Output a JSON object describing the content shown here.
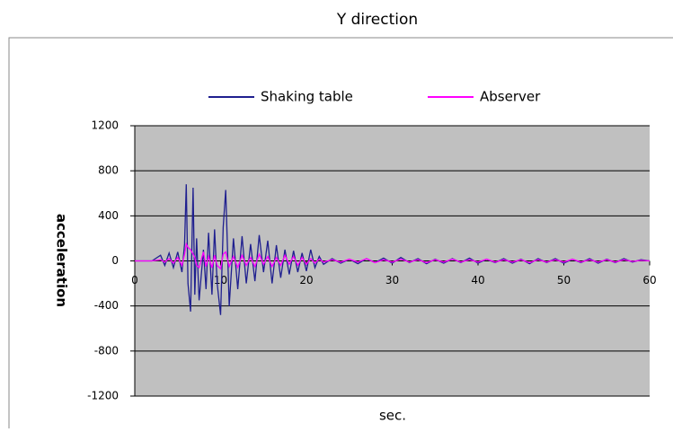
{
  "chart_data": {
    "type": "line",
    "title": "Y direction",
    "x_label": "sec.",
    "y_label": "acceleration",
    "x": [
      0,
      2,
      3,
      3.5,
      4,
      4.5,
      5,
      5.5,
      5.8,
      6,
      6.2,
      6.5,
      6.8,
      7,
      7.2,
      7.5,
      8,
      8.3,
      8.6,
      9,
      9.3,
      9.6,
      10,
      10.3,
      10.6,
      11,
      11.5,
      12,
      12.5,
      13,
      13.5,
      14,
      14.5,
      15,
      15.5,
      16,
      16.5,
      17,
      17.5,
      18,
      18.5,
      19,
      19.5,
      20,
      20.5,
      21,
      21.5,
      22,
      23,
      24,
      25,
      26,
      27,
      28,
      29,
      30,
      31,
      32,
      33,
      34,
      35,
      36,
      37,
      38,
      39,
      40,
      41,
      42,
      43,
      44,
      45,
      46,
      47,
      48,
      49,
      50,
      51,
      52,
      53,
      54,
      55,
      56,
      57,
      58,
      59,
      60
    ],
    "series": [
      {
        "name": "Shaking table",
        "color": "#1f1f8f",
        "values": [
          0,
          0,
          50,
          -40,
          70,
          -60,
          80,
          -100,
          150,
          680,
          -200,
          -450,
          650,
          -300,
          200,
          -350,
          100,
          -250,
          250,
          -300,
          280,
          -200,
          -480,
          300,
          630,
          -400,
          200,
          -250,
          220,
          -200,
          150,
          -180,
          230,
          -100,
          180,
          -200,
          140,
          -150,
          100,
          -120,
          90,
          -100,
          70,
          -90,
          100,
          -60,
          40,
          -30,
          20,
          -20,
          15,
          -25,
          20,
          -15,
          25,
          -20,
          30,
          -15,
          20,
          -25,
          15,
          -20,
          20,
          -15,
          25,
          -20,
          15,
          -15,
          20,
          -20,
          15,
          -25,
          20,
          -15,
          20,
          -20,
          15,
          -15,
          20,
          -20,
          15,
          -15,
          20,
          -10,
          10,
          0
        ]
      },
      {
        "name": "Abserver",
        "color": "#ff00ff",
        "values": [
          0,
          0,
          10,
          -10,
          20,
          -20,
          30,
          -40,
          60,
          150,
          120,
          100,
          60,
          30,
          -40,
          -60,
          80,
          -50,
          40,
          -60,
          50,
          -40,
          -70,
          60,
          80,
          -50,
          40,
          -60,
          50,
          -40,
          30,
          -50,
          60,
          -30,
          40,
          -50,
          30,
          -40,
          50,
          -30,
          40,
          -40,
          30,
          -30,
          20,
          -20,
          15,
          -10,
          10,
          -10,
          15,
          -10,
          20,
          -15,
          10,
          -10,
          15,
          -10,
          10,
          -15,
          10,
          -10,
          15,
          -10,
          10,
          -10,
          15,
          -10,
          10,
          -10,
          10,
          -15,
          10,
          -10,
          10,
          -10,
          15,
          -10,
          10,
          -10,
          10,
          -10,
          10,
          -5,
          5,
          0
        ]
      }
    ],
    "xlim": [
      0,
      60
    ],
    "xticks": [
      0,
      10,
      20,
      30,
      40,
      50,
      60
    ],
    "ylim": [
      -1200,
      1200
    ],
    "yticks": [
      -1200,
      -800,
      -400,
      0,
      400,
      800,
      1200
    ],
    "grid": true,
    "legend": "top"
  }
}
